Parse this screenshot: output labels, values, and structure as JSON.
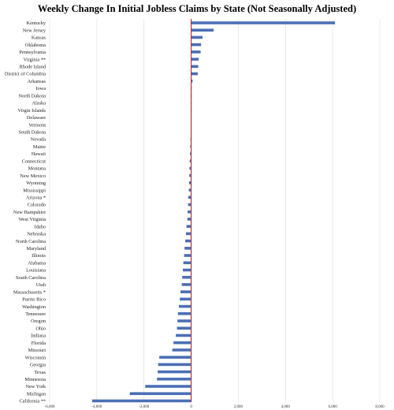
{
  "chart_data": {
    "type": "bar",
    "orientation": "horizontal",
    "title": "Weekly Change In Initial Jobless Claims by State (Not Seasonally Adjusted)",
    "xlabel": "",
    "ylabel": "",
    "xlim": [
      -6000,
      8000
    ],
    "x_ticks": [
      -6000,
      -4000,
      -2000,
      0,
      2000,
      4000,
      6000,
      8000
    ],
    "x_tick_labels": [
      "-6,000",
      "-4,000",
      "-2,000",
      "0",
      "2,000",
      "4,000",
      "6,000",
      "8,000"
    ],
    "grid": "vertical",
    "bar_color": "#4a6fb5",
    "zero_line_color": "#e02020",
    "categories": [
      "Kentucky",
      "New Jersey",
      "Kansas",
      "Oklahoma",
      "Pennsylvania",
      "Virginia **",
      "Rhode Island",
      "District of Columbia",
      "Arkansas",
      "Iowa",
      "North Dakota",
      "Alaska",
      "Virgin Islands",
      "Delaware",
      "Vermont",
      "South Dakota",
      "Nevada",
      "Maine",
      "Hawaii",
      "Connecticut",
      "Montana",
      "New Mexico",
      "Wyoming",
      "Mississippi",
      "Arizona *",
      "Colorado",
      "New Hampshire",
      "West Virginia",
      "Idaho",
      "Nebraska",
      "North Carolina",
      "Maryland",
      "Illinois",
      "Alabama",
      "Louisiana",
      "South Carolina",
      "Utah",
      "Massachusetts *",
      "Puerto Rico",
      "Washington",
      "Tennessee",
      "Oregon",
      "Ohio",
      "Indiana",
      "Florida",
      "Missouri",
      "Wisconsin",
      "Georgia",
      "Texas",
      "Minnesota",
      "New York",
      "Michigan",
      "California **"
    ],
    "values": [
      6100,
      950,
      480,
      420,
      400,
      320,
      300,
      280,
      60,
      20,
      15,
      10,
      5,
      0,
      -5,
      -10,
      -30,
      -40,
      -50,
      -60,
      -70,
      -80,
      -90,
      -100,
      -120,
      -130,
      -150,
      -160,
      -200,
      -220,
      -250,
      -280,
      -300,
      -330,
      -350,
      -380,
      -400,
      -450,
      -480,
      -520,
      -560,
      -580,
      -600,
      -650,
      -750,
      -800,
      -1350,
      -1400,
      -1420,
      -1450,
      -1950,
      -2600,
      -4200
    ]
  }
}
